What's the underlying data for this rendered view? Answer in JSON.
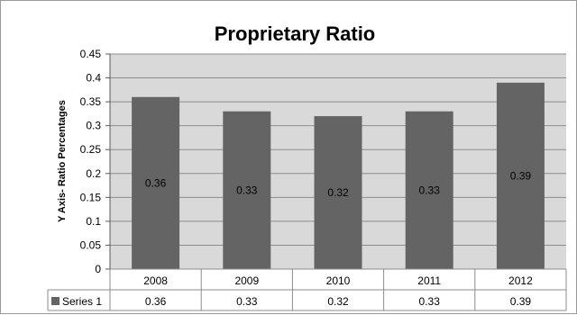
{
  "chart_data": {
    "type": "bar",
    "title": "Proprietary Ratio",
    "ylabel": "Y  Axis-  Ratio Percentages",
    "xlabel": "",
    "categories": [
      "2008",
      "2009",
      "2010",
      "2011",
      "2012"
    ],
    "series": [
      {
        "name": "Series 1",
        "values": [
          0.36,
          0.33,
          0.32,
          0.33,
          0.39
        ],
        "value_labels": [
          "0.36",
          "0.33",
          "0.32",
          "0.33",
          "0.39"
        ]
      }
    ],
    "ylim": [
      0,
      0.45
    ],
    "y_ticks": [
      "0",
      "0.05",
      "0.1",
      "0.15",
      "0.2",
      "0.25",
      "0.3",
      "0.35",
      "0.4",
      "0.45"
    ],
    "grid": true,
    "data_table": true,
    "colors": {
      "bar": "#646464",
      "plot_background": "#d9d9d9",
      "gridline": "#8c8c8c",
      "text": "#000000"
    }
  }
}
